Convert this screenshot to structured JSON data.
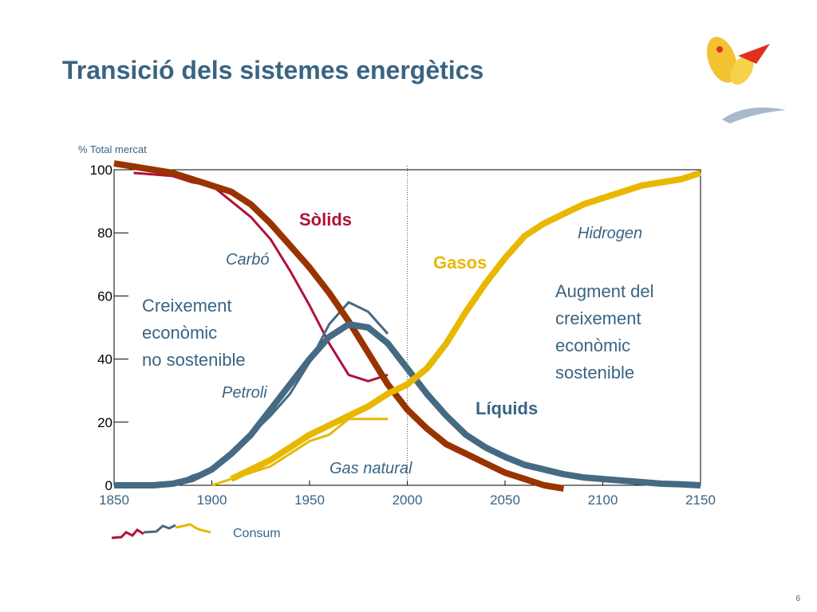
{
  "chart_data": {
    "type": "line",
    "title": "Transició dels sistemes energètics",
    "y_label": "% Total mercat",
    "x": [
      1850,
      1860,
      1870,
      1880,
      1890,
      1900,
      1910,
      1920,
      1930,
      1940,
      1950,
      1960,
      1970,
      1980,
      1990,
      2000,
      2010,
      2020,
      2030,
      2040,
      2050,
      2060,
      2070,
      2080,
      2090,
      2100,
      2110,
      2120,
      2130,
      2140,
      2150
    ],
    "series": [
      {
        "name": "Sòlids",
        "color": "#993300",
        "values": [
          102,
          101,
          100,
          99,
          97,
          95,
          93,
          89,
          83,
          76,
          69,
          61,
          52,
          42,
          32,
          24,
          18,
          13,
          10,
          7,
          4,
          2,
          0,
          -1,
          null,
          null,
          null,
          null,
          null,
          null,
          null
        ]
      },
      {
        "name": "Líquids",
        "color": "#456a83",
        "values": [
          0,
          0,
          0,
          0.5,
          2,
          5,
          10,
          16,
          24,
          32,
          40,
          47,
          51,
          50,
          45,
          37,
          29,
          22,
          16,
          12,
          9,
          6.5,
          5,
          3.5,
          2.5,
          2,
          1.5,
          1,
          0.5,
          0.3,
          0
        ]
      },
      {
        "name": "Gasos",
        "color": "#e8b800",
        "values": [
          null,
          null,
          null,
          null,
          null,
          null,
          2,
          5,
          8,
          12,
          16,
          19,
          22,
          25,
          29,
          32,
          37,
          45,
          55,
          64,
          72,
          79,
          83,
          86,
          89,
          91,
          93,
          95,
          96,
          97,
          99
        ]
      },
      {
        "name": "Carbó",
        "color": "#b0123a",
        "values": [
          null,
          99,
          98.5,
          98,
          96,
          95,
          90,
          85,
          78,
          68,
          57,
          45,
          35,
          33,
          35,
          null,
          null,
          null,
          null,
          null,
          null,
          null,
          null,
          null,
          null,
          null,
          null,
          null,
          null,
          null,
          null
        ]
      },
      {
        "name": "Petroli",
        "color": "#456a83",
        "values": [
          null,
          null,
          null,
          0,
          3,
          5,
          10,
          16,
          22,
          29,
          39,
          51,
          58,
          55,
          48,
          null,
          null,
          null,
          null,
          null,
          null,
          null,
          null,
          null,
          null,
          null,
          null,
          null,
          null,
          null,
          null
        ]
      },
      {
        "name": "Gas natural",
        "color": "#e8b800",
        "values": [
          null,
          null,
          null,
          null,
          null,
          0,
          2,
          4,
          6,
          10,
          14,
          16,
          21,
          21,
          21,
          null,
          null,
          null,
          null,
          null,
          null,
          null,
          null,
          null,
          null,
          null,
          null,
          null,
          null,
          null,
          null
        ]
      }
    ],
    "xlim": [
      1850,
      2150
    ],
    "ylim": [
      0,
      100
    ],
    "xticks": [
      1850,
      1900,
      1950,
      2000,
      2050,
      2100,
      2150
    ],
    "yticks": [
      0,
      20,
      40,
      60,
      80,
      100
    ],
    "vline": 2000,
    "annotations": [
      "Hidrogen",
      [
        "Augment del",
        "creixement",
        "econòmic",
        "sostenible"
      ],
      [
        "Creixement",
        "econòmic",
        "no sostenible"
      ]
    ],
    "legend_label": "Consum"
  },
  "page_number": "6"
}
